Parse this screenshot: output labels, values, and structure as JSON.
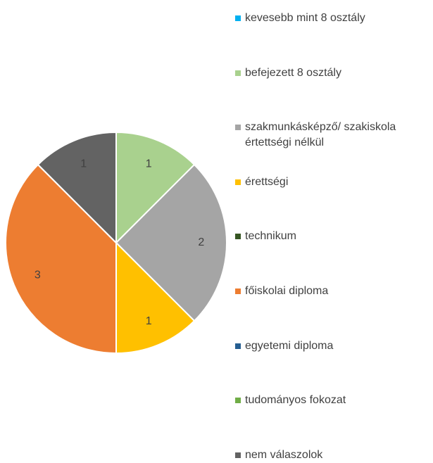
{
  "chart_data": {
    "type": "pie",
    "categories": [
      "kevesebb mint 8 osztály",
      "befejezett 8 osztály",
      "szakmunkásképző/ szakiskola értettségi nélkül",
      "érettségi",
      "technikum",
      "főiskolai diploma",
      "egyetemi diploma",
      "tudományos fokozat",
      "nem válaszolok"
    ],
    "values": [
      0,
      1,
      2,
      1,
      0,
      3,
      0,
      0,
      1
    ],
    "colors": [
      "#00b0f0",
      "#a9d18e",
      "#a5a5a5",
      "#ffc000",
      "#375623",
      "#ed7d31",
      "#255e91",
      "#70ad47",
      "#636363"
    ],
    "legend": "right"
  }
}
